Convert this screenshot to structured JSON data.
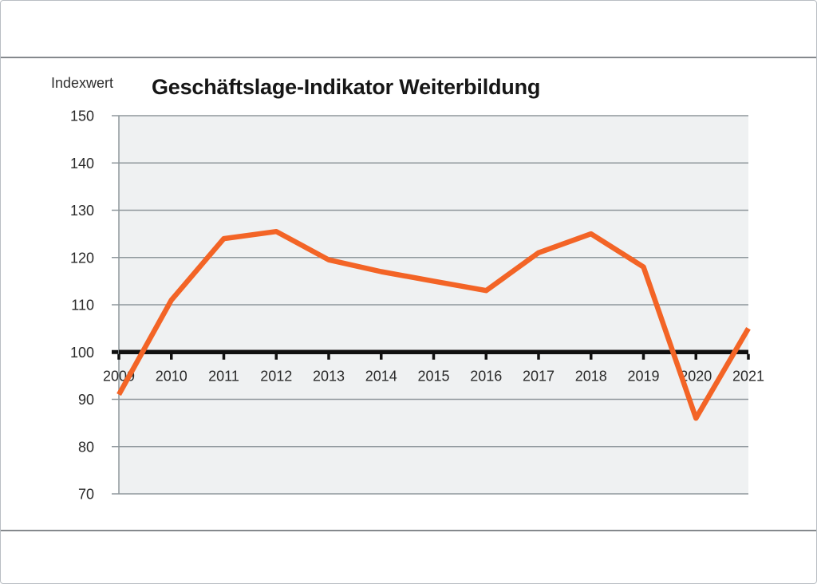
{
  "chart_data": {
    "type": "line",
    "title": "Geschäftslage-Indikator Weiterbildung",
    "ylabel": "Indexwert",
    "xlabel": "",
    "categories": [
      "2009",
      "2010",
      "2011",
      "2012",
      "2013",
      "2014",
      "2015",
      "2016",
      "2017",
      "2018",
      "2019",
      "2020",
      "2021"
    ],
    "series": [
      {
        "name": "Geschäftslage-Indikator",
        "values": [
          91,
          111,
          124,
          125.5,
          119.5,
          117,
          115,
          113,
          121,
          125,
          118,
          86,
          105
        ]
      }
    ],
    "ylim": [
      70,
      150
    ],
    "yticks": [
      70,
      80,
      90,
      100,
      110,
      120,
      130,
      140,
      150
    ],
    "baseline": 100,
    "grid": true,
    "legend_position": "none",
    "colors": {
      "line": "#f36426",
      "plot_bg": "#eff1f2",
      "grid": "#8f979c",
      "baseline": "#101010",
      "tick_text": "#2a2a2a"
    }
  }
}
